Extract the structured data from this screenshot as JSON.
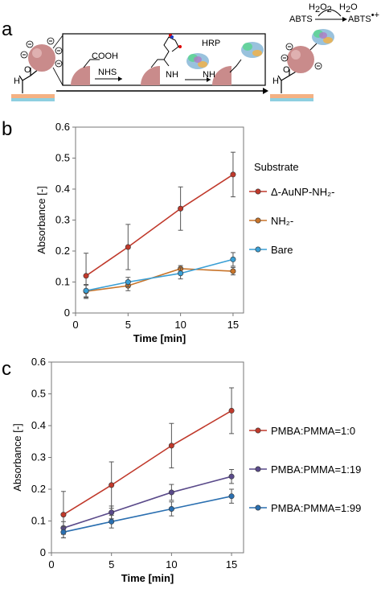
{
  "panel_a": {
    "label": "a",
    "cooh": "COOH",
    "nhs": "NHS",
    "hrp": "HRP",
    "nh2_left": "NH",
    "nh2_right": "NH",
    "abts_left": "ABTS",
    "abts_right": "ABTS",
    "abts_right_sup": "•+",
    "h2o2": "H",
    "h2o": "H"
  },
  "chart_data": [
    {
      "panel_label": "b",
      "type": "line",
      "x": [
        1,
        5,
        10,
        15
      ],
      "xlabel": "Time [min]",
      "ylabel": "Absorbance [-]",
      "xlim": [
        0,
        16
      ],
      "ylim": [
        0,
        0.6
      ],
      "xticks": [
        "0",
        "5",
        "10",
        "15"
      ],
      "yticks": [
        "0",
        "0.1",
        "0.2",
        "0.3",
        "0.4",
        "0.5",
        "0.6"
      ],
      "legend_title": "Substrate",
      "legend_position": "right",
      "grid": false,
      "series": [
        {
          "name": "Δ-AuNP-NH₂-",
          "color": "#c0392b",
          "values": [
            0.12,
            0.213,
            0.337,
            0.447
          ],
          "errors": [
            0.073,
            0.073,
            0.07,
            0.072
          ]
        },
        {
          "name": "NH₂-",
          "color": "#c8742a",
          "values": [
            0.07,
            0.088,
            0.143,
            0.135
          ],
          "errors": [
            0.02,
            0.016,
            0.01,
            0.012
          ]
        },
        {
          "name": "Bare",
          "color": "#3a9fd5",
          "values": [
            0.072,
            0.1,
            0.128,
            0.173
          ],
          "errors": [
            0.02,
            0.015,
            0.018,
            0.022
          ]
        }
      ]
    },
    {
      "panel_label": "c",
      "type": "line",
      "x": [
        1,
        5,
        10,
        15
      ],
      "xlabel": "Time [min]",
      "ylabel": "Absorbance [-]",
      "xlim": [
        0,
        16
      ],
      "ylim": [
        0,
        0.6
      ],
      "xticks": [
        "0",
        "5",
        "10",
        "15"
      ],
      "yticks": [
        "0",
        "0.1",
        "0.2",
        "0.3",
        "0.4",
        "0.5",
        "0.6"
      ],
      "legend_position": "right",
      "grid": false,
      "series": [
        {
          "name": "PMBA:PMMA=1:0",
          "color": "#c0392b",
          "values": [
            0.12,
            0.213,
            0.337,
            0.447
          ],
          "errors": [
            0.073,
            0.073,
            0.07,
            0.072
          ]
        },
        {
          "name": "PMBA:PMMA=1:19",
          "color": "#5a4a8a",
          "values": [
            0.078,
            0.127,
            0.19,
            0.24
          ],
          "errors": [
            0.02,
            0.02,
            0.025,
            0.022
          ]
        },
        {
          "name": "PMBA:PMMA=1:99",
          "color": "#2a6fb0",
          "values": [
            0.065,
            0.098,
            0.138,
            0.178
          ],
          "errors": [
            0.018,
            0.02,
            0.022,
            0.022
          ]
        }
      ]
    }
  ]
}
